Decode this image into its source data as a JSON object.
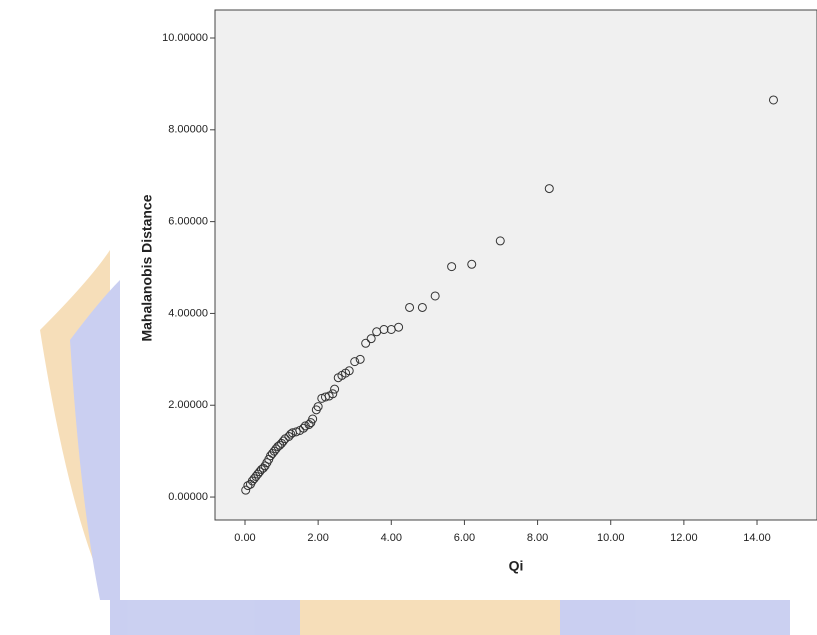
{
  "chart_data": {
    "type": "scatter",
    "xlabel": "Qi",
    "ylabel": "Mahalanobis Distance",
    "marker_color": "#333333",
    "xlim": [
      -0.82,
      15.64
    ],
    "ylim": [
      -0.5,
      10.61
    ],
    "xticks": [
      {
        "value": 0,
        "label": "0.00"
      },
      {
        "value": 2,
        "label": "2.00"
      },
      {
        "value": 4,
        "label": "4.00"
      },
      {
        "value": 6,
        "label": "6.00"
      },
      {
        "value": 8,
        "label": "8.00"
      },
      {
        "value": 10,
        "label": "10.00"
      },
      {
        "value": 12,
        "label": "12.00"
      },
      {
        "value": 14,
        "label": "14.00"
      }
    ],
    "yticks": [
      {
        "value": 0,
        "label": "0.00000"
      },
      {
        "value": 2,
        "label": "2.00000"
      },
      {
        "value": 4,
        "label": "4.00000"
      },
      {
        "value": 6,
        "label": "6.00000"
      },
      {
        "value": 8,
        "label": "8.00000"
      },
      {
        "value": 10,
        "label": "10.00000"
      }
    ],
    "x": [
      0.02,
      0.08,
      0.15,
      0.2,
      0.25,
      0.3,
      0.35,
      0.4,
      0.45,
      0.5,
      0.55,
      0.6,
      0.65,
      0.7,
      0.75,
      0.8,
      0.85,
      0.9,
      0.95,
      1.0,
      1.05,
      1.1,
      1.2,
      1.25,
      1.3,
      1.4,
      1.5,
      1.6,
      1.65,
      1.75,
      1.8,
      1.85,
      1.95,
      2.0,
      2.1,
      2.2,
      2.3,
      2.4,
      2.45,
      2.55,
      2.65,
      2.75,
      2.85,
      3.0,
      3.15,
      3.3,
      3.45,
      3.6,
      3.8,
      4.0,
      4.2,
      4.5,
      4.85,
      5.2,
      5.65,
      6.2,
      6.98,
      8.32,
      14.45
    ],
    "values": [
      0.15,
      0.25,
      0.28,
      0.35,
      0.4,
      0.45,
      0.5,
      0.55,
      0.6,
      0.63,
      0.68,
      0.75,
      0.82,
      0.9,
      0.95,
      1.0,
      1.05,
      1.1,
      1.13,
      1.17,
      1.22,
      1.27,
      1.32,
      1.37,
      1.4,
      1.42,
      1.45,
      1.5,
      1.55,
      1.58,
      1.62,
      1.7,
      1.9,
      1.97,
      2.15,
      2.18,
      2.2,
      2.25,
      2.35,
      2.6,
      2.65,
      2.7,
      2.75,
      2.95,
      3.0,
      3.35,
      3.45,
      3.6,
      3.65,
      3.65,
      3.7,
      4.13,
      4.13,
      4.38,
      5.02,
      5.07,
      5.58,
      6.72,
      8.65
    ]
  }
}
